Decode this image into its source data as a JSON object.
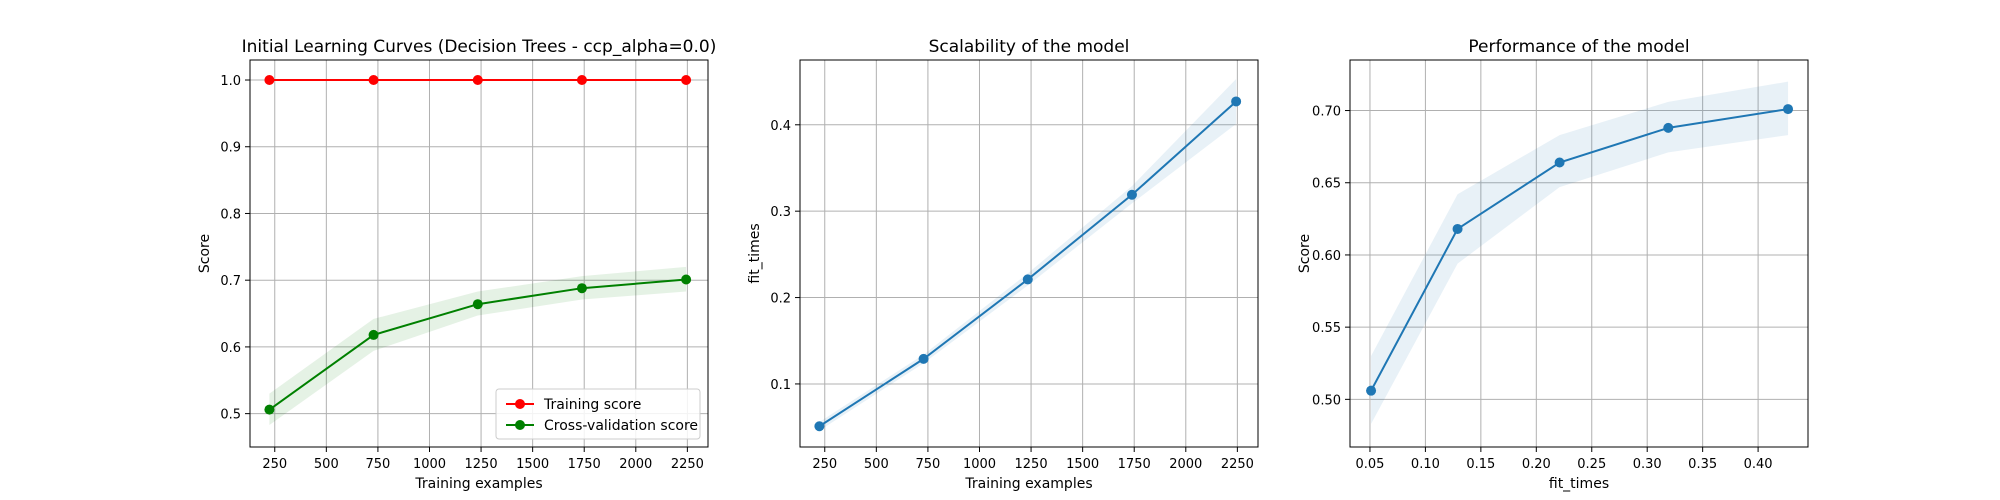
{
  "chart_data": [
    {
      "type": "line",
      "title": "Initial Learning Curves (Decision Trees - ccp_alpha=0.0)",
      "xlabel": "Training examples",
      "ylabel": "Score",
      "xlim": [
        130,
        2350
      ],
      "ylim": [
        0.45,
        1.03
      ],
      "xticks": [
        250,
        500,
        750,
        1000,
        1250,
        1500,
        1750,
        2000,
        2250
      ],
      "xtick_labels": [
        "250",
        "500",
        "750",
        "1000",
        "1250",
        "1500",
        "1750",
        "2000",
        "2250"
      ],
      "yticks": [
        0.5,
        0.6,
        0.7,
        0.8,
        0.9,
        1.0
      ],
      "ytick_labels": [
        "0.5",
        "0.6",
        "0.7",
        "0.8",
        "0.9",
        "1.0"
      ],
      "grid": true,
      "legend_position": "lower right",
      "x": [
        224,
        729,
        1234,
        1739,
        2244
      ],
      "series": [
        {
          "name": "Training score",
          "color": "#ff0000",
          "values": [
            1.0,
            1.0,
            1.0,
            1.0,
            1.0
          ],
          "band_lower": [
            1.0,
            1.0,
            1.0,
            1.0,
            1.0
          ],
          "band_upper": [
            1.0,
            1.0,
            1.0,
            1.0,
            1.0
          ]
        },
        {
          "name": "Cross-validation score",
          "color": "#008000",
          "values": [
            0.506,
            0.618,
            0.664,
            0.688,
            0.701
          ],
          "band_lower": [
            0.483,
            0.594,
            0.647,
            0.671,
            0.683
          ],
          "band_upper": [
            0.53,
            0.642,
            0.683,
            0.706,
            0.72
          ]
        }
      ]
    },
    {
      "type": "line",
      "title": "Scalability of the model",
      "xlabel": "Training examples",
      "ylabel": "fit_times",
      "xlim": [
        130,
        2350
      ],
      "ylim": [
        0.027,
        0.475
      ],
      "xticks": [
        250,
        500,
        750,
        1000,
        1250,
        1500,
        1750,
        2000,
        2250
      ],
      "xtick_labels": [
        "250",
        "500",
        "750",
        "1000",
        "1250",
        "1500",
        "1750",
        "2000",
        "2250"
      ],
      "yticks": [
        0.1,
        0.2,
        0.3,
        0.4
      ],
      "ytick_labels": [
        "0.1",
        "0.2",
        "0.3",
        "0.4"
      ],
      "grid": true,
      "x": [
        224,
        729,
        1234,
        1739,
        2244
      ],
      "series": [
        {
          "name": "",
          "color": "#1f77b4",
          "values": [
            0.051,
            0.129,
            0.221,
            0.319,
            0.427
          ],
          "band_lower": [
            0.046,
            0.124,
            0.214,
            0.309,
            0.401
          ],
          "band_upper": [
            0.056,
            0.134,
            0.228,
            0.329,
            0.453
          ]
        }
      ]
    },
    {
      "type": "line",
      "title": "Performance of the model",
      "xlabel": "fit_times",
      "ylabel": "Score",
      "xlim": [
        0.032,
        0.445
      ],
      "ylim": [
        0.467,
        0.735
      ],
      "xticks": [
        0.05,
        0.1,
        0.15,
        0.2,
        0.25,
        0.3,
        0.35,
        0.4
      ],
      "xtick_labels": [
        "0.05",
        "0.10",
        "0.15",
        "0.20",
        "0.25",
        "0.30",
        "0.35",
        "0.40"
      ],
      "yticks": [
        0.5,
        0.55,
        0.6,
        0.65,
        0.7
      ],
      "ytick_labels": [
        "0.50",
        "0.55",
        "0.60",
        "0.65",
        "0.70"
      ],
      "grid": true,
      "x": [
        0.051,
        0.129,
        0.221,
        0.319,
        0.427
      ],
      "series": [
        {
          "name": "",
          "color": "#1f77b4",
          "values": [
            0.506,
            0.618,
            0.664,
            0.688,
            0.701
          ],
          "band_lower": [
            0.483,
            0.594,
            0.647,
            0.671,
            0.683
          ],
          "band_upper": [
            0.53,
            0.642,
            0.683,
            0.706,
            0.72
          ]
        }
      ]
    }
  ]
}
